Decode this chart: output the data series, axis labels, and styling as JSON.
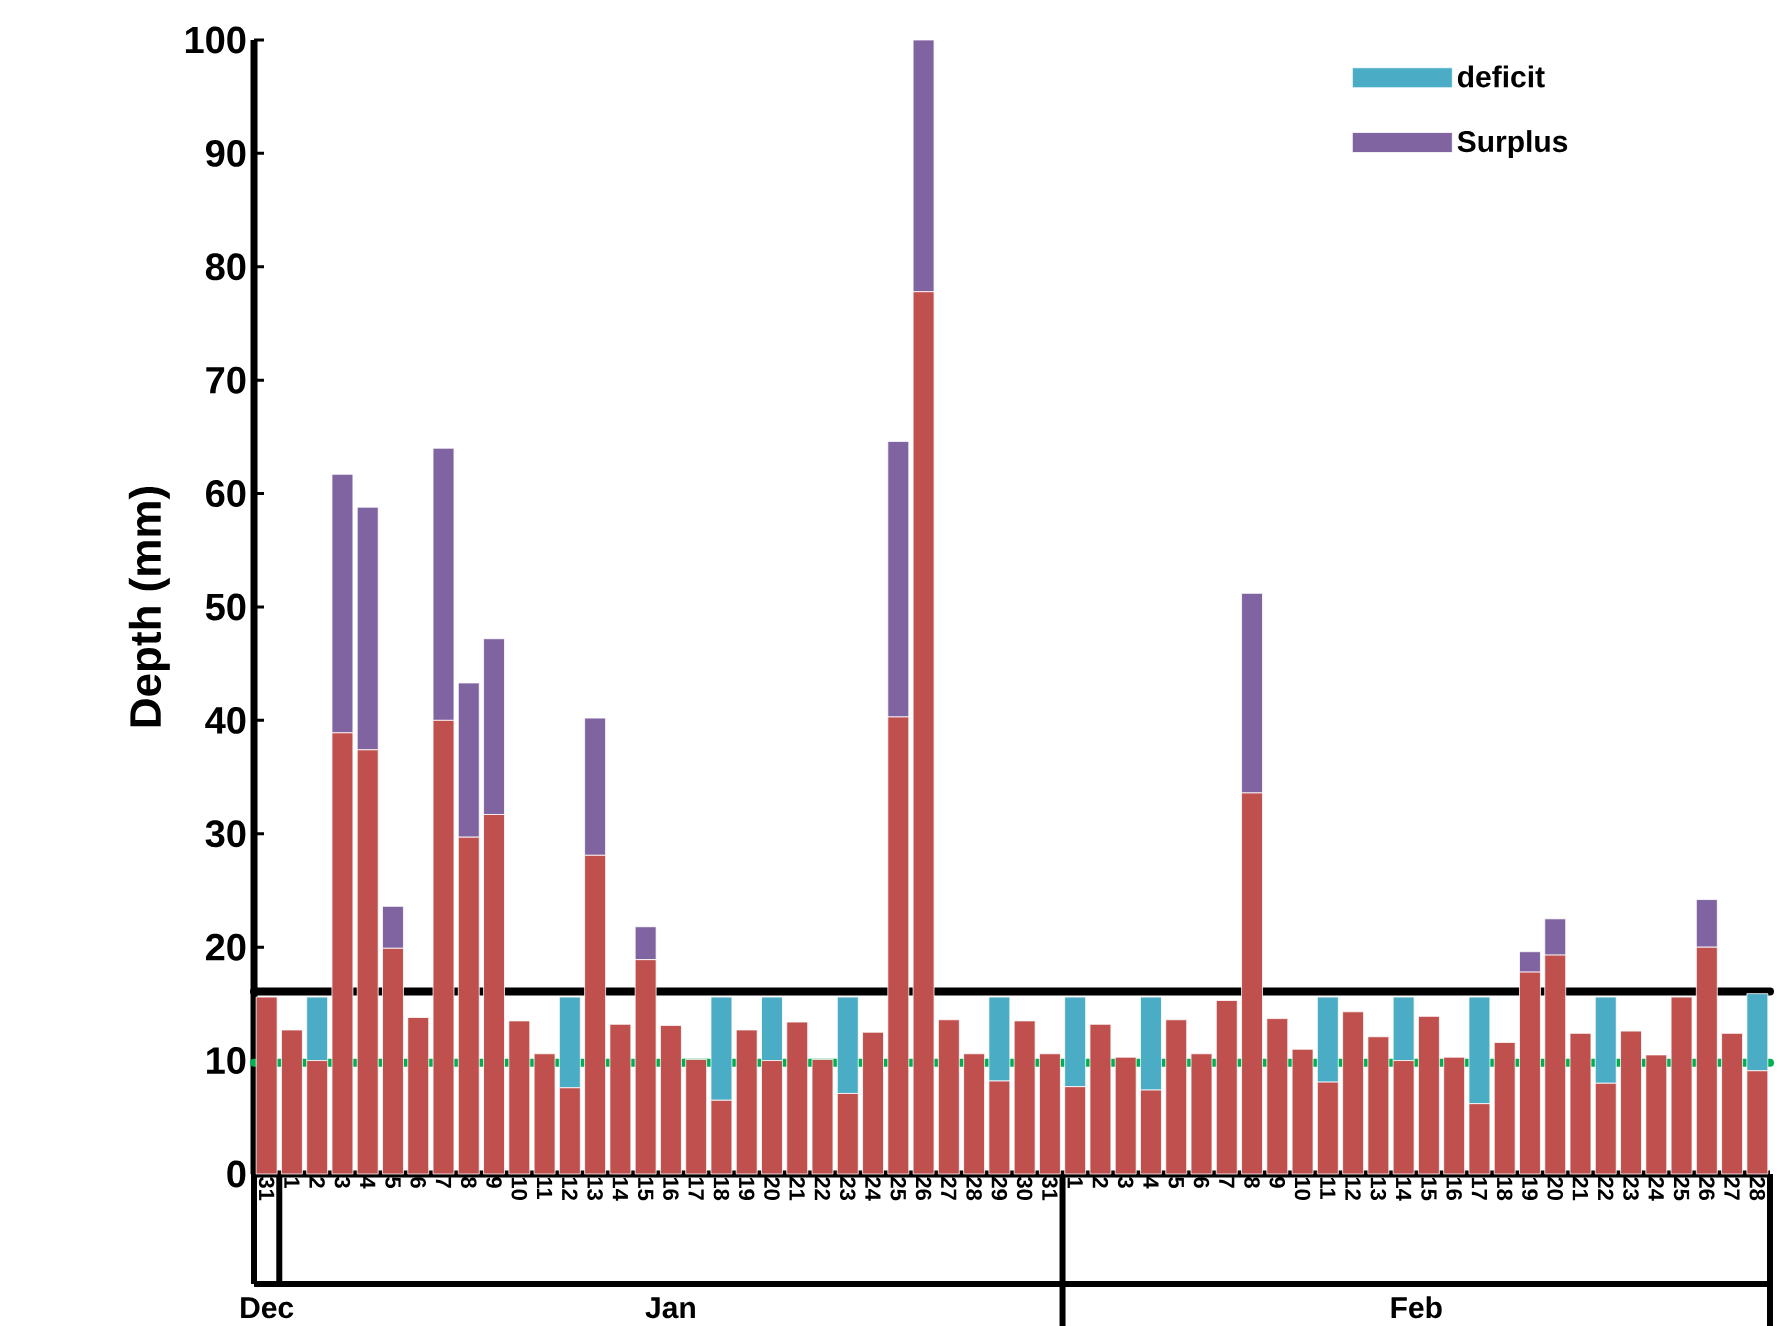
{
  "chart_data": {
    "type": "bar",
    "stacked": true,
    "ylabel": "Depth (mm)",
    "categories": [
      "31",
      "1",
      "2",
      "3",
      "4",
      "5",
      "6",
      "7",
      "8",
      "9",
      "10",
      "11",
      "12",
      "13",
      "14",
      "15",
      "16",
      "17",
      "18",
      "19",
      "20",
      "21",
      "22",
      "23",
      "24",
      "25",
      "26",
      "27",
      "28",
      "29",
      "30",
      "31",
      "1",
      "2",
      "3",
      "4",
      "5",
      "6",
      "7",
      "8",
      "9",
      "10",
      "11",
      "12",
      "13",
      "14",
      "15",
      "16",
      "17",
      "18",
      "19",
      "20",
      "21",
      "22",
      "23",
      "24",
      "25",
      "26",
      "27",
      "28"
    ],
    "series": [
      {
        "color": "#c0504d",
        "values": [
          15.6,
          12.7,
          10.0,
          38.9,
          37.4,
          19.9,
          13.8,
          40.0,
          29.7,
          31.7,
          13.5,
          10.6,
          7.6,
          28.1,
          13.2,
          18.9,
          13.1,
          10.1,
          6.5,
          12.7,
          10.0,
          13.4,
          10.1,
          7.1,
          12.5,
          40.3,
          77.8,
          13.6,
          10.6,
          8.2,
          13.5,
          10.6,
          7.7,
          13.2,
          10.3,
          7.4,
          13.6,
          10.6,
          15.3,
          33.6,
          13.7,
          11.0,
          8.1,
          14.3,
          12.1,
          10.0,
          13.9,
          10.3,
          6.2,
          11.6,
          17.8,
          19.3,
          12.4,
          8.0,
          12.6,
          10.5,
          15.6,
          20.0,
          12.4,
          9.1
        ]
      },
      {
        "name": "deficit",
        "color": "#4bacc6",
        "values": [
          null,
          null,
          5.6,
          null,
          null,
          null,
          null,
          null,
          null,
          null,
          null,
          null,
          8.0,
          null,
          null,
          null,
          null,
          null,
          9.1,
          null,
          5.6,
          null,
          null,
          8.5,
          null,
          null,
          null,
          null,
          null,
          7.4,
          null,
          null,
          7.9,
          null,
          null,
          8.2,
          null,
          null,
          null,
          null,
          null,
          null,
          7.5,
          null,
          null,
          5.6,
          null,
          null,
          9.4,
          null,
          null,
          null,
          null,
          7.6,
          null,
          null,
          null,
          null,
          null,
          6.8
        ]
      },
      {
        "name": "Surplus",
        "color": "#8064a2",
        "values": [
          null,
          null,
          null,
          22.8,
          21.4,
          3.7,
          null,
          24.0,
          13.6,
          15.5,
          null,
          null,
          null,
          12.1,
          null,
          2.9,
          null,
          null,
          null,
          null,
          null,
          null,
          null,
          null,
          null,
          24.3,
          22.2,
          null,
          null,
          null,
          null,
          null,
          null,
          null,
          null,
          null,
          null,
          null,
          null,
          17.6,
          null,
          null,
          null,
          null,
          null,
          null,
          null,
          null,
          null,
          null,
          1.8,
          3.2,
          null,
          null,
          null,
          null,
          null,
          4.2,
          null,
          null
        ]
      }
    ],
    "ylim": [
      0,
      100
    ],
    "yticks": [
      0,
      10,
      20,
      30,
      40,
      50,
      60,
      70,
      80,
      90,
      100
    ],
    "ref_lines": [
      {
        "axis": "y",
        "value": 16.1,
        "color": "#000000"
      },
      {
        "axis": "y",
        "value": 9.8,
        "color": "#00b050"
      }
    ],
    "annotations": [
      "Dec",
      "Jan",
      "Feb"
    ],
    "legend": "top right",
    "grid": false
  }
}
